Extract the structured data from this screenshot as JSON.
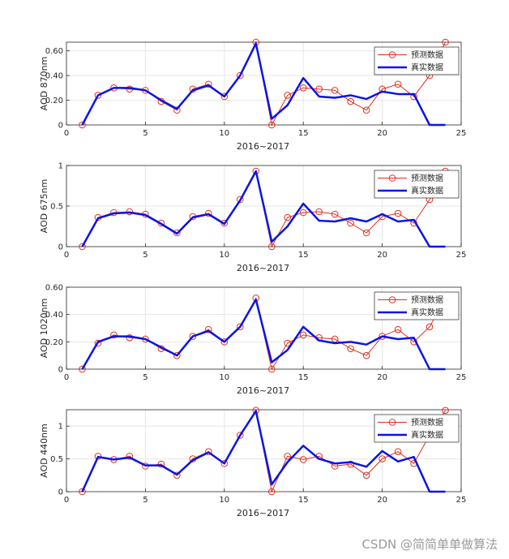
{
  "watermark": "CSDN @简简单单做算法",
  "colors": {
    "predicted": "#e0301e",
    "actual": "#0a14e6",
    "grid": "#e6e6e6",
    "axis": "#262626"
  },
  "chart_data": [
    {
      "type": "line",
      "ylabel": "AOD 870nm",
      "xlabel": "2016~2017",
      "xlim": [
        0,
        25
      ],
      "xticks": [
        0,
        5,
        10,
        15,
        20,
        25
      ],
      "ylim": [
        0,
        0.67
      ],
      "yticks": [
        0,
        0.2,
        0.4,
        0.6
      ],
      "ytick_labels": [
        "0",
        "0.20",
        "0.40",
        "0.60"
      ],
      "legend_position": "top-right",
      "series": [
        {
          "name": "预测数据",
          "marker": "circle",
          "x": [
            1,
            2,
            3,
            4,
            5,
            6,
            7,
            8,
            9,
            10,
            11,
            12,
            13,
            14,
            15,
            16,
            17,
            18,
            19,
            20,
            21,
            22,
            23,
            24
          ],
          "values": [
            0,
            0.24,
            0.3,
            0.29,
            0.28,
            0.19,
            0.12,
            0.29,
            0.33,
            0.23,
            0.4,
            0.67,
            0.0,
            0.24,
            0.3,
            0.29,
            0.28,
            0.19,
            0.12,
            0.29,
            0.33,
            0.23,
            0.4,
            0.67
          ]
        },
        {
          "name": "真实数据",
          "x": [
            1,
            2,
            3,
            4,
            5,
            6,
            7,
            8,
            9,
            10,
            11,
            12,
            13,
            14,
            15,
            16,
            17,
            18,
            19,
            20,
            21,
            22,
            23,
            24
          ],
          "values": [
            0,
            0.24,
            0.3,
            0.3,
            0.28,
            0.2,
            0.13,
            0.28,
            0.32,
            0.23,
            0.4,
            0.66,
            0.05,
            0.16,
            0.38,
            0.23,
            0.22,
            0.24,
            0.21,
            0.27,
            0.25,
            0.25,
            0,
            0
          ]
        }
      ]
    },
    {
      "type": "line",
      "ylabel": "AOD 675nm",
      "xlabel": "2016~2017",
      "xlim": [
        0,
        25
      ],
      "xticks": [
        0,
        5,
        10,
        15,
        20,
        25
      ],
      "ylim": [
        0,
        1
      ],
      "yticks": [
        0,
        0.5,
        1
      ],
      "ytick_labels": [
        "0",
        "0.5",
        "1"
      ],
      "legend_position": "top-right",
      "series": [
        {
          "name": "预测数据",
          "marker": "circle",
          "x": [
            1,
            2,
            3,
            4,
            5,
            6,
            7,
            8,
            9,
            10,
            11,
            12,
            13,
            14,
            15,
            16,
            17,
            18,
            19,
            20,
            21,
            22,
            23,
            24
          ],
          "values": [
            0,
            0.36,
            0.42,
            0.43,
            0.4,
            0.29,
            0.17,
            0.37,
            0.41,
            0.29,
            0.58,
            0.93,
            0.0,
            0.36,
            0.42,
            0.43,
            0.4,
            0.29,
            0.17,
            0.37,
            0.41,
            0.29,
            0.58,
            0.93
          ]
        },
        {
          "name": "真实数据",
          "x": [
            1,
            2,
            3,
            4,
            5,
            6,
            7,
            8,
            9,
            10,
            11,
            12,
            13,
            14,
            15,
            16,
            17,
            18,
            19,
            20,
            21,
            22,
            23,
            24
          ],
          "values": [
            0,
            0.35,
            0.41,
            0.42,
            0.39,
            0.28,
            0.16,
            0.36,
            0.4,
            0.28,
            0.57,
            0.93,
            0.06,
            0.25,
            0.53,
            0.32,
            0.31,
            0.35,
            0.31,
            0.4,
            0.31,
            0.33,
            0,
            0
          ]
        }
      ]
    },
    {
      "type": "line",
      "ylabel": "AOD 1020nm",
      "xlabel": "2016~2017",
      "xlim": [
        0,
        25
      ],
      "xticks": [
        0,
        5,
        10,
        15,
        20,
        25
      ],
      "ylim": [
        0,
        0.6
      ],
      "yticks": [
        0,
        0.2,
        0.4,
        0.6
      ],
      "ytick_labels": [
        "0",
        "0.20",
        "0.40",
        "0.60"
      ],
      "legend_position": "top-right",
      "series": [
        {
          "name": "预测数据",
          "marker": "circle",
          "x": [
            1,
            2,
            3,
            4,
            5,
            6,
            7,
            8,
            9,
            10,
            11,
            12,
            13,
            14,
            15,
            16,
            17,
            18,
            19,
            20,
            21,
            22,
            23,
            24
          ],
          "values": [
            0,
            0.19,
            0.25,
            0.23,
            0.22,
            0.15,
            0.1,
            0.24,
            0.29,
            0.2,
            0.31,
            0.52,
            0.0,
            0.19,
            0.25,
            0.23,
            0.22,
            0.15,
            0.1,
            0.24,
            0.29,
            0.2,
            0.31,
            0.52
          ]
        },
        {
          "name": "真实数据",
          "x": [
            1,
            2,
            3,
            4,
            5,
            6,
            7,
            8,
            9,
            10,
            11,
            12,
            13,
            14,
            15,
            16,
            17,
            18,
            19,
            20,
            21,
            22,
            23,
            24
          ],
          "values": [
            0,
            0.2,
            0.24,
            0.24,
            0.22,
            0.16,
            0.1,
            0.24,
            0.28,
            0.2,
            0.31,
            0.51,
            0.05,
            0.14,
            0.31,
            0.21,
            0.19,
            0.2,
            0.18,
            0.24,
            0.22,
            0.23,
            0,
            0
          ]
        }
      ]
    },
    {
      "type": "line",
      "ylabel": "AOD 440nm",
      "xlabel": "2016~2017",
      "xlim": [
        0,
        25
      ],
      "xticks": [
        0,
        5,
        10,
        15,
        20,
        25
      ],
      "ylim": [
        0,
        1.25
      ],
      "yticks": [
        0,
        0.5,
        1
      ],
      "ytick_labels": [
        "0",
        "0.5",
        "1"
      ],
      "legend_position": "top-right",
      "series": [
        {
          "name": "预测数据",
          "marker": "circle",
          "x": [
            1,
            2,
            3,
            4,
            5,
            6,
            7,
            8,
            9,
            10,
            11,
            12,
            13,
            14,
            15,
            16,
            17,
            18,
            19,
            20,
            21,
            22,
            23,
            24
          ],
          "values": [
            0,
            0.54,
            0.49,
            0.54,
            0.39,
            0.42,
            0.25,
            0.5,
            0.61,
            0.43,
            0.86,
            1.24,
            0.0,
            0.54,
            0.49,
            0.54,
            0.39,
            0.42,
            0.25,
            0.5,
            0.61,
            0.43,
            0.86,
            1.24
          ]
        },
        {
          "name": "真实数据",
          "x": [
            1,
            2,
            3,
            4,
            5,
            6,
            7,
            8,
            9,
            10,
            11,
            12,
            13,
            14,
            15,
            16,
            17,
            18,
            19,
            20,
            21,
            22,
            23,
            24
          ],
          "values": [
            0,
            0.53,
            0.49,
            0.52,
            0.4,
            0.4,
            0.26,
            0.48,
            0.6,
            0.43,
            0.86,
            1.23,
            0.11,
            0.45,
            0.7,
            0.5,
            0.43,
            0.45,
            0.38,
            0.62,
            0.46,
            0.53,
            0,
            0
          ]
        }
      ]
    }
  ]
}
